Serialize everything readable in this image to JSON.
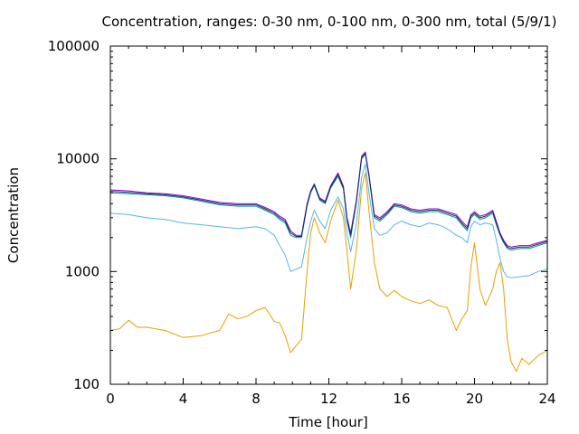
{
  "chart_data": {
    "type": "line",
    "title": "Concentration, ranges: 0-30 nm, 0-100 nm, 0-300 nm, total (5/9/1)",
    "xlabel": "Time [hour]",
    "ylabel": "Concentration",
    "xlim": [
      0,
      24
    ],
    "ylim": [
      100,
      100000
    ],
    "yscale": "log",
    "grid": false,
    "legend": "none",
    "x_ticks": [
      0,
      4,
      8,
      12,
      16,
      20,
      24
    ],
    "x_tick_labels": [
      "0",
      "4",
      "8",
      "12",
      "16",
      "20",
      "24"
    ],
    "y_ticks": [
      100,
      1000,
      10000,
      100000
    ],
    "y_tick_labels": [
      "100",
      "1000",
      "10000",
      "100000"
    ],
    "series": [
      {
        "color": "#e69f00",
        "x": [
          0,
          0.5,
          1,
          1.5,
          2,
          3,
          4,
          5,
          6,
          6.5,
          7,
          7.5,
          8,
          8.5,
          9,
          9.3,
          9.6,
          9.9,
          10.2,
          10.5,
          10.8,
          11.0,
          11.2,
          11.5,
          11.8,
          12.1,
          12.5,
          12.8,
          13.0,
          13.2,
          13.5,
          13.8,
          14.0,
          14.2,
          14.5,
          14.8,
          15.2,
          15.6,
          16,
          16.5,
          17,
          17.5,
          18,
          18.5,
          19,
          19.3,
          19.6,
          19.8,
          20.0,
          20.3,
          20.6,
          21.0,
          21.2,
          21.4,
          21.6,
          21.8,
          22.0,
          22.3,
          22.6,
          23,
          23.5,
          24
        ],
        "values": [
          300,
          310,
          370,
          320,
          320,
          300,
          260,
          270,
          300,
          420,
          380,
          400,
          450,
          480,
          360,
          350,
          270,
          190,
          220,
          250,
          1000,
          2200,
          3000,
          2200,
          1800,
          2800,
          4300,
          3000,
          1500,
          700,
          1500,
          5500,
          7500,
          3500,
          1200,
          700,
          600,
          680,
          600,
          550,
          520,
          560,
          500,
          480,
          300,
          380,
          450,
          1100,
          1800,
          700,
          500,
          700,
          1000,
          1200,
          700,
          250,
          160,
          130,
          170,
          150,
          180,
          200
        ]
      },
      {
        "color": "#56b4e9",
        "x": [
          0,
          1,
          2,
          3,
          4,
          5,
          6,
          7,
          8,
          8.5,
          9,
          9.3,
          9.6,
          9.9,
          10.2,
          10.5,
          10.8,
          11.0,
          11.2,
          11.5,
          11.8,
          12.1,
          12.5,
          12.8,
          13.0,
          13.2,
          13.5,
          13.8,
          14.0,
          14.2,
          14.5,
          14.8,
          15.2,
          15.6,
          16,
          16.5,
          17,
          17.5,
          18,
          18.5,
          19,
          19.3,
          19.6,
          19.8,
          20.0,
          20.3,
          20.6,
          21.0,
          21.2,
          21.4,
          21.6,
          21.8,
          22.0,
          22.5,
          23,
          23.5,
          24
        ],
        "values": [
          3300,
          3200,
          3000,
          2900,
          2700,
          2600,
          2500,
          2400,
          2500,
          2400,
          2100,
          1700,
          1400,
          1000,
          1050,
          1100,
          2000,
          2800,
          3500,
          2800,
          2400,
          3500,
          4600,
          3600,
          2200,
          1500,
          2600,
          6800,
          9000,
          5000,
          2400,
          2100,
          2200,
          2600,
          2800,
          2600,
          2500,
          2700,
          2600,
          2400,
          2100,
          2000,
          1800,
          2500,
          2800,
          2600,
          2700,
          2600,
          1900,
          1300,
          1000,
          900,
          880,
          900,
          920,
          1000,
          1050
        ]
      },
      {
        "color": "#009e73",
        "x": [
          0,
          1,
          2,
          3,
          4,
          5,
          6,
          7,
          8,
          8.5,
          9,
          9.3,
          9.6,
          9.9,
          10.2,
          10.5,
          10.8,
          11.0,
          11.2,
          11.5,
          11.8,
          12.1,
          12.5,
          12.8,
          13.0,
          13.2,
          13.5,
          13.8,
          14.0,
          14.2,
          14.5,
          14.8,
          15.2,
          15.6,
          16,
          16.5,
          17,
          17.5,
          18,
          18.5,
          19,
          19.3,
          19.6,
          19.8,
          20.0,
          20.3,
          20.6,
          21.0,
          21.2,
          21.4,
          21.6,
          21.8,
          22.0,
          22.5,
          23,
          23.5,
          24
        ],
        "values": [
          5000,
          4900,
          4800,
          4700,
          4500,
          4200,
          3900,
          3800,
          3800,
          3500,
          3200,
          2900,
          2700,
          2100,
          2000,
          2000,
          3800,
          5000,
          5800,
          4300,
          4000,
          5500,
          7000,
          5400,
          2800,
          2000,
          4000,
          10000,
          11000,
          7000,
          3000,
          2800,
          3200,
          3800,
          3700,
          3400,
          3300,
          3400,
          3400,
          3200,
          3000,
          2600,
          2300,
          3000,
          3200,
          2900,
          3000,
          3300,
          2600,
          2100,
          1800,
          1600,
          1550,
          1600,
          1600,
          1700,
          1800
        ]
      },
      {
        "color": "#9400d3",
        "x": [
          0,
          1,
          2,
          3,
          4,
          5,
          6,
          7,
          8,
          8.5,
          9,
          9.3,
          9.6,
          9.9,
          10.2,
          10.5,
          10.8,
          11.0,
          11.2,
          11.5,
          11.8,
          12.1,
          12.5,
          12.8,
          13.0,
          13.2,
          13.5,
          13.8,
          14.0,
          14.2,
          14.5,
          14.8,
          15.2,
          15.6,
          16,
          16.5,
          17,
          17.5,
          18,
          18.5,
          19,
          19.3,
          19.6,
          19.8,
          20.0,
          20.3,
          20.6,
          21.0,
          21.2,
          21.4,
          21.6,
          21.8,
          22.0,
          22.5,
          23,
          23.5,
          24
        ],
        "values": [
          5300,
          5200,
          5000,
          4900,
          4700,
          4400,
          4100,
          4000,
          4000,
          3700,
          3400,
          3100,
          2900,
          2300,
          2100,
          2100,
          4000,
          5200,
          6000,
          4500,
          4200,
          5800,
          7500,
          5700,
          3000,
          2200,
          4200,
          10500,
          11500,
          7300,
          3200,
          3000,
          3400,
          4000,
          3900,
          3600,
          3500,
          3600,
          3600,
          3400,
          3200,
          2800,
          2500,
          3200,
          3400,
          3100,
          3200,
          3500,
          2800,
          2200,
          1900,
          1700,
          1650,
          1700,
          1700,
          1800,
          1900
        ]
      },
      {
        "color": "#1a2a6c",
        "x": [
          0,
          1,
          2,
          3,
          4,
          5,
          6,
          7,
          8,
          8.5,
          9,
          9.3,
          9.6,
          9.9,
          10.2,
          10.5,
          10.8,
          11.0,
          11.2,
          11.5,
          11.8,
          12.1,
          12.5,
          12.8,
          13.0,
          13.2,
          13.5,
          13.8,
          14.0,
          14.2,
          14.5,
          14.8,
          15.2,
          15.6,
          16,
          16.5,
          17,
          17.5,
          18,
          18.5,
          19,
          19.3,
          19.6,
          19.8,
          20.0,
          20.3,
          20.6,
          21.0,
          21.2,
          21.4,
          21.6,
          21.8,
          22.0,
          22.5,
          23,
          23.5,
          24
        ],
        "values": [
          5150,
          5050,
          4900,
          4800,
          4600,
          4300,
          4000,
          3900,
          3900,
          3600,
          3300,
          3000,
          2800,
          2200,
          2050,
          2050,
          3900,
          5100,
          5900,
          4400,
          4100,
          5650,
          7250,
          5550,
          2900,
          2100,
          4100,
          10200,
          11200,
          7150,
          3100,
          2900,
          3300,
          3900,
          3800,
          3500,
          3400,
          3500,
          3500,
          3300,
          3100,
          2700,
          2400,
          3100,
          3300,
          3000,
          3100,
          3400,
          2700,
          2150,
          1850,
          1650,
          1600,
          1650,
          1650,
          1750,
          1850
        ]
      }
    ]
  }
}
